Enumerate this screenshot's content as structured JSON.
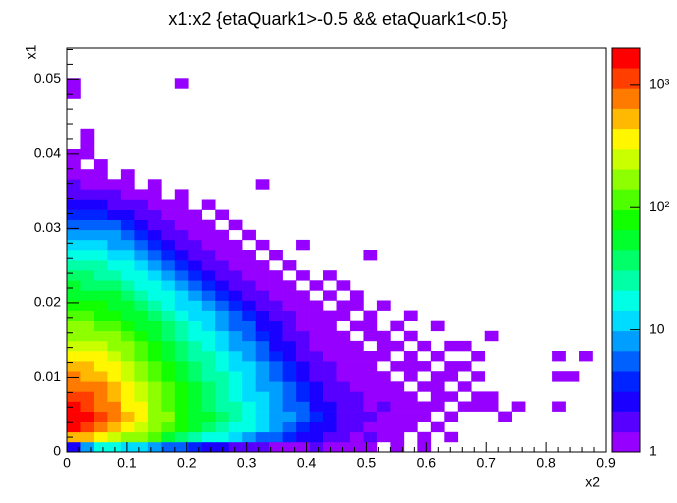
{
  "chart_data": {
    "type": "heatmap",
    "title": "x1:x2 {etaQuark1>-0.5 && etaQuark1<0.5}",
    "x_label": "x2",
    "y_label": "x1",
    "xlim": [
      0,
      0.9
    ],
    "ylim": [
      0,
      0.0542
    ],
    "xticks": [
      0,
      0.1,
      0.2,
      0.3,
      0.4,
      0.5,
      0.6,
      0.7,
      0.8,
      0.9
    ],
    "yticks": [
      0,
      0.01,
      0.02,
      0.03,
      0.04,
      0.05
    ],
    "zlim": [
      1,
      2000
    ],
    "log_z": true,
    "colormap": "rainbow",
    "zticks": [
      1,
      10,
      {
        "value": 100,
        "label": "10²"
      },
      {
        "value": 1000,
        "label": "10³"
      }
    ],
    "z": [
      [
        3,
        8,
        20,
        15,
        12,
        10,
        8,
        6,
        5,
        4,
        3,
        3,
        2,
        2,
        2,
        1,
        1,
        1,
        2,
        1,
        1,
        1,
        1,
        0,
        1,
        0,
        1,
        0,
        0,
        0,
        0,
        0,
        0,
        0,
        0,
        0,
        0,
        0,
        0,
        0
      ],
      [
        600,
        500,
        400,
        250,
        200,
        150,
        100,
        60,
        40,
        30,
        20,
        15,
        12,
        8,
        6,
        5,
        4,
        3,
        3,
        2,
        2,
        1,
        2,
        1,
        1,
        0,
        1,
        0,
        1,
        0,
        0,
        0,
        0,
        0,
        0,
        0,
        0,
        0,
        0,
        0
      ],
      [
        1500,
        1300,
        900,
        600,
        400,
        250,
        180,
        120,
        80,
        60,
        40,
        30,
        20,
        15,
        10,
        8,
        6,
        4,
        3,
        3,
        2,
        2,
        1,
        1,
        1,
        1,
        0,
        1,
        0,
        0,
        0,
        0,
        0,
        0,
        0,
        0,
        0,
        0,
        0,
        0
      ],
      [
        1600,
        1400,
        1000,
        700,
        450,
        300,
        200,
        140,
        90,
        60,
        45,
        32,
        22,
        16,
        12,
        9,
        7,
        5,
        4,
        3,
        2,
        2,
        2,
        1,
        1,
        1,
        1,
        0,
        1,
        0,
        0,
        0,
        1,
        0,
        0,
        0,
        0,
        0,
        0,
        0
      ],
      [
        1400,
        1200,
        900,
        650,
        420,
        300,
        200,
        130,
        90,
        60,
        40,
        30,
        22,
        15,
        11,
        8,
        6,
        5,
        3,
        3,
        2,
        2,
        1,
        2,
        1,
        1,
        1,
        1,
        0,
        1,
        1,
        1,
        0,
        1,
        0,
        0,
        1,
        0,
        0,
        0
      ],
      [
        1200,
        1000,
        800,
        550,
        380,
        260,
        180,
        120,
        80,
        55,
        38,
        27,
        20,
        14,
        10,
        8,
        6,
        4,
        3,
        2,
        2,
        2,
        1,
        1,
        1,
        1,
        0,
        1,
        1,
        0,
        1,
        1,
        0,
        0,
        0,
        0,
        0,
        0,
        0,
        0
      ],
      [
        900,
        800,
        650,
        450,
        320,
        220,
        150,
        100,
        70,
        48,
        33,
        24,
        17,
        12,
        9,
        7,
        5,
        4,
        3,
        2,
        2,
        1,
        1,
        1,
        1,
        0,
        1,
        1,
        0,
        1,
        0,
        0,
        0,
        0,
        0,
        0,
        0,
        0,
        0,
        0
      ],
      [
        700,
        600,
        500,
        380,
        270,
        190,
        130,
        90,
        60,
        42,
        30,
        21,
        15,
        11,
        8,
        6,
        4,
        3,
        2,
        2,
        1,
        1,
        1,
        1,
        0,
        1,
        0,
        1,
        1,
        0,
        1,
        0,
        0,
        0,
        0,
        0,
        1,
        1,
        0,
        0
      ],
      [
        500,
        450,
        380,
        300,
        220,
        160,
        110,
        75,
        52,
        36,
        26,
        18,
        13,
        10,
        7,
        5,
        4,
        3,
        2,
        2,
        1,
        1,
        1,
        0,
        1,
        1,
        1,
        0,
        1,
        1,
        0,
        0,
        0,
        0,
        0,
        0,
        0,
        0,
        0,
        0
      ],
      [
        380,
        350,
        300,
        240,
        180,
        130,
        90,
        62,
        44,
        30,
        22,
        16,
        11,
        8,
        6,
        4,
        3,
        2,
        2,
        1,
        1,
        1,
        1,
        1,
        0,
        1,
        0,
        1,
        0,
        0,
        1,
        0,
        0,
        0,
        0,
        0,
        1,
        0,
        1,
        0
      ],
      [
        280,
        260,
        220,
        180,
        140,
        100,
        72,
        50,
        36,
        25,
        18,
        13,
        9,
        7,
        5,
        3,
        3,
        2,
        1,
        1,
        1,
        1,
        0,
        1,
        1,
        0,
        1,
        0,
        1,
        1,
        0,
        0,
        0,
        0,
        0,
        0,
        0,
        0,
        0,
        0
      ],
      [
        200,
        190,
        170,
        140,
        110,
        80,
        58,
        40,
        29,
        20,
        15,
        11,
        8,
        6,
        4,
        3,
        2,
        2,
        1,
        1,
        1,
        0,
        1,
        1,
        0,
        1,
        0,
        0,
        0,
        0,
        0,
        1,
        0,
        0,
        0,
        0,
        0,
        0,
        0,
        0
      ],
      [
        150,
        140,
        125,
        105,
        85,
        62,
        45,
        32,
        23,
        17,
        12,
        9,
        6,
        5,
        3,
        3,
        2,
        1,
        1,
        1,
        0,
        1,
        1,
        0,
        1,
        0,
        0,
        1,
        0,
        0,
        0,
        0,
        0,
        0,
        0,
        0,
        0,
        0,
        0,
        0
      ],
      [
        110,
        105,
        95,
        80,
        65,
        48,
        35,
        25,
        18,
        13,
        10,
        7,
        5,
        4,
        3,
        2,
        2,
        1,
        1,
        1,
        1,
        0,
        1,
        0,
        0,
        1,
        0,
        0,
        0,
        0,
        0,
        0,
        0,
        0,
        0,
        0,
        0,
        0,
        0,
        0
      ],
      [
        80,
        78,
        70,
        60,
        48,
        36,
        27,
        20,
        14,
        10,
        8,
        6,
        4,
        3,
        2,
        2,
        1,
        1,
        1,
        0,
        1,
        1,
        0,
        1,
        0,
        0,
        0,
        0,
        0,
        0,
        0,
        0,
        0,
        0,
        0,
        0,
        0,
        0,
        0,
        0
      ],
      [
        60,
        58,
        52,
        45,
        36,
        27,
        20,
        15,
        11,
        8,
        6,
        4,
        3,
        2,
        2,
        1,
        1,
        1,
        0,
        1,
        0,
        1,
        0,
        0,
        0,
        0,
        0,
        0,
        0,
        0,
        0,
        0,
        0,
        0,
        0,
        0,
        0,
        0,
        0,
        0
      ],
      [
        45,
        43,
        39,
        33,
        27,
        20,
        15,
        11,
        8,
        6,
        4,
        3,
        2,
        2,
        1,
        1,
        1,
        0,
        1,
        0,
        1,
        0,
        0,
        0,
        0,
        0,
        0,
        0,
        0,
        0,
        0,
        0,
        0,
        0,
        0,
        0,
        0,
        0,
        0,
        0
      ],
      [
        34,
        32,
        29,
        25,
        20,
        15,
        11,
        8,
        6,
        4,
        3,
        2,
        2,
        1,
        1,
        1,
        0,
        1,
        0,
        1,
        0,
        0,
        0,
        0,
        0,
        0,
        0,
        0,
        0,
        0,
        0,
        0,
        0,
        0,
        0,
        0,
        0,
        0,
        0,
        0
      ],
      [
        25,
        24,
        21,
        18,
        15,
        11,
        8,
        6,
        4,
        3,
        2,
        2,
        1,
        1,
        1,
        0,
        1,
        0,
        0,
        0,
        0,
        0,
        0,
        0,
        0,
        0,
        0,
        0,
        0,
        0,
        0,
        0,
        0,
        0,
        0,
        0,
        0,
        0,
        0,
        0
      ],
      [
        18,
        17,
        15,
        13,
        10,
        8,
        6,
        4,
        3,
        2,
        2,
        1,
        1,
        1,
        0,
        1,
        0,
        0,
        0,
        0,
        0,
        0,
        1,
        0,
        0,
        0,
        0,
        0,
        0,
        0,
        0,
        0,
        0,
        0,
        0,
        0,
        0,
        0,
        0,
        0
      ],
      [
        13,
        12,
        11,
        9,
        7,
        6,
        4,
        3,
        2,
        2,
        1,
        1,
        1,
        0,
        1,
        0,
        0,
        1,
        0,
        0,
        0,
        0,
        0,
        0,
        0,
        0,
        0,
        0,
        0,
        0,
        0,
        0,
        0,
        0,
        0,
        0,
        0,
        0,
        0,
        0
      ],
      [
        9,
        9,
        8,
        7,
        5,
        4,
        3,
        2,
        2,
        1,
        1,
        1,
        0,
        1,
        0,
        0,
        0,
        0,
        0,
        0,
        0,
        0,
        0,
        0,
        0,
        0,
        0,
        0,
        0,
        0,
        0,
        0,
        0,
        0,
        0,
        0,
        0,
        0,
        0,
        0
      ],
      [
        6,
        6,
        5,
        5,
        4,
        3,
        2,
        2,
        1,
        1,
        1,
        0,
        1,
        0,
        0,
        0,
        0,
        0,
        0,
        0,
        0,
        0,
        0,
        0,
        0,
        0,
        0,
        0,
        0,
        0,
        0,
        0,
        0,
        0,
        0,
        0,
        0,
        0,
        0,
        0
      ],
      [
        4,
        4,
        4,
        3,
        3,
        2,
        2,
        1,
        1,
        1,
        0,
        1,
        0,
        0,
        0,
        0,
        0,
        0,
        0,
        0,
        0,
        0,
        0,
        0,
        0,
        0,
        0,
        0,
        0,
        0,
        0,
        0,
        0,
        0,
        0,
        0,
        0,
        0,
        0,
        0
      ],
      [
        3,
        3,
        3,
        2,
        2,
        2,
        1,
        1,
        1,
        0,
        1,
        0,
        0,
        0,
        0,
        0,
        0,
        0,
        0,
        0,
        0,
        0,
        0,
        0,
        0,
        0,
        0,
        0,
        0,
        0,
        0,
        0,
        0,
        0,
        0,
        0,
        0,
        0,
        0,
        0
      ],
      [
        2,
        2,
        2,
        2,
        1,
        1,
        1,
        0,
        1,
        0,
        0,
        0,
        0,
        0,
        0,
        0,
        0,
        0,
        0,
        0,
        0,
        0,
        0,
        0,
        0,
        0,
        0,
        0,
        0,
        0,
        0,
        0,
        0,
        0,
        0,
        0,
        0,
        0,
        0,
        0
      ],
      [
        2,
        1,
        1,
        1,
        1,
        0,
        1,
        0,
        0,
        0,
        0,
        0,
        0,
        0,
        1,
        0,
        0,
        0,
        0,
        0,
        0,
        0,
        0,
        0,
        0,
        0,
        0,
        0,
        0,
        0,
        0,
        0,
        0,
        0,
        0,
        0,
        0,
        0,
        0,
        0
      ],
      [
        1,
        1,
        1,
        0,
        1,
        0,
        0,
        0,
        0,
        0,
        0,
        0,
        0,
        0,
        0,
        0,
        0,
        0,
        0,
        0,
        0,
        0,
        0,
        0,
        0,
        0,
        0,
        0,
        0,
        0,
        0,
        0,
        0,
        0,
        0,
        0,
        0,
        0,
        0,
        0
      ],
      [
        1,
        0,
        1,
        0,
        0,
        0,
        0,
        0,
        0,
        0,
        0,
        0,
        0,
        0,
        0,
        0,
        0,
        0,
        0,
        0,
        0,
        0,
        0,
        0,
        0,
        0,
        0,
        0,
        0,
        0,
        0,
        0,
        0,
        0,
        0,
        0,
        0,
        0,
        0,
        0
      ],
      [
        1,
        1,
        0,
        0,
        0,
        0,
        0,
        0,
        0,
        0,
        0,
        0,
        0,
        0,
        0,
        0,
        0,
        0,
        0,
        0,
        0,
        0,
        0,
        0,
        0,
        0,
        0,
        0,
        0,
        0,
        0,
        0,
        0,
        0,
        0,
        0,
        0,
        0,
        0,
        0
      ],
      [
        0,
        1,
        0,
        0,
        0,
        0,
        0,
        0,
        0,
        0,
        0,
        0,
        0,
        0,
        0,
        0,
        0,
        0,
        0,
        0,
        0,
        0,
        0,
        0,
        0,
        0,
        0,
        0,
        0,
        0,
        0,
        0,
        0,
        0,
        0,
        0,
        0,
        0,
        0,
        0
      ],
      [
        0,
        1,
        0,
        0,
        0,
        0,
        0,
        0,
        0,
        0,
        0,
        0,
        0,
        0,
        0,
        0,
        0,
        0,
        0,
        0,
        0,
        0,
        0,
        0,
        0,
        0,
        0,
        0,
        0,
        0,
        0,
        0,
        0,
        0,
        0,
        0,
        0,
        0,
        0,
        0
      ],
      [
        0,
        0,
        0,
        0,
        0,
        0,
        0,
        0,
        0,
        0,
        0,
        0,
        0,
        0,
        0,
        0,
        0,
        0,
        0,
        0,
        0,
        0,
        0,
        0,
        0,
        0,
        0,
        0,
        0,
        0,
        0,
        0,
        0,
        0,
        0,
        0,
        0,
        0,
        0,
        0
      ],
      [
        0,
        0,
        0,
        0,
        0,
        0,
        0,
        0,
        0,
        0,
        0,
        0,
        0,
        0,
        0,
        0,
        0,
        0,
        0,
        0,
        0,
        0,
        0,
        0,
        0,
        0,
        0,
        0,
        0,
        0,
        0,
        0,
        0,
        0,
        0,
        0,
        0,
        0,
        0,
        0
      ],
      [
        0,
        0,
        0,
        0,
        0,
        0,
        0,
        0,
        0,
        0,
        0,
        0,
        0,
        0,
        0,
        0,
        0,
        0,
        0,
        0,
        0,
        0,
        0,
        0,
        0,
        0,
        0,
        0,
        0,
        0,
        0,
        0,
        0,
        0,
        0,
        0,
        0,
        0,
        0,
        0
      ],
      [
        1,
        0,
        0,
        0,
        0,
        0,
        0,
        0,
        0,
        0,
        0,
        0,
        0,
        0,
        0,
        0,
        0,
        0,
        0,
        0,
        0,
        0,
        0,
        0,
        0,
        0,
        0,
        0,
        0,
        0,
        0,
        0,
        0,
        0,
        0,
        0,
        0,
        0,
        0,
        0
      ],
      [
        1,
        0,
        0,
        0,
        0,
        0,
        0,
        0,
        1,
        0,
        0,
        0,
        0,
        0,
        0,
        0,
        0,
        0,
        0,
        0,
        0,
        0,
        0,
        0,
        0,
        0,
        0,
        0,
        0,
        0,
        0,
        0,
        0,
        0,
        0,
        0,
        0,
        0,
        0,
        0
      ],
      [
        0,
        0,
        0,
        0,
        0,
        0,
        0,
        0,
        0,
        0,
        0,
        0,
        0,
        0,
        0,
        0,
        0,
        0,
        0,
        0,
        0,
        0,
        0,
        0,
        0,
        0,
        0,
        0,
        0,
        0,
        0,
        0,
        0,
        0,
        0,
        0,
        0,
        0,
        0,
        0
      ],
      [
        0,
        0,
        0,
        0,
        0,
        0,
        0,
        0,
        0,
        0,
        0,
        0,
        0,
        0,
        0,
        0,
        0,
        0,
        0,
        0,
        0,
        0,
        0,
        0,
        0,
        0,
        0,
        0,
        0,
        0,
        0,
        0,
        0,
        0,
        0,
        0,
        0,
        0,
        0,
        0
      ],
      [
        0,
        0,
        0,
        0,
        0,
        0,
        0,
        0,
        0,
        0,
        0,
        0,
        0,
        0,
        0,
        0,
        0,
        0,
        0,
        0,
        0,
        0,
        0,
        0,
        0,
        0,
        0,
        0,
        0,
        0,
        0,
        0,
        0,
        0,
        0,
        0,
        0,
        0,
        0,
        0
      ]
    ]
  }
}
